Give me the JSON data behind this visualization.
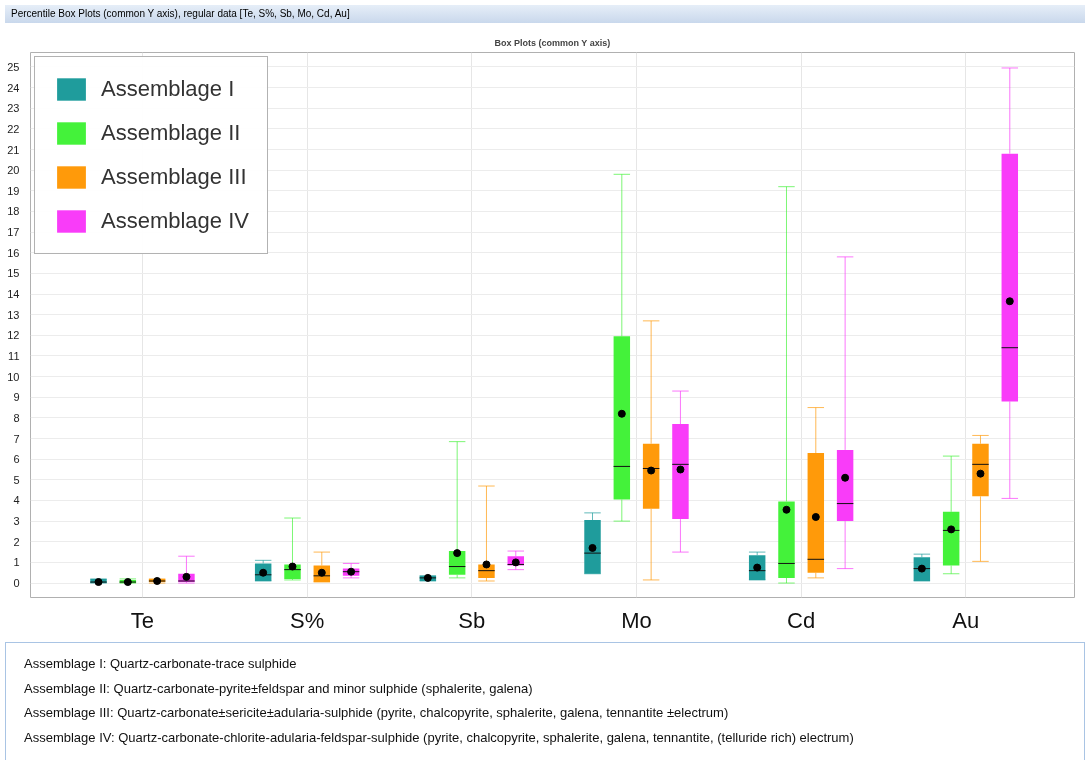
{
  "chart_data": {
    "type": "box",
    "title": "Percentile Box Plots (common Y axis), regular data [Te, S%, Sb, Mo, Cd, Au]",
    "subtitle": "Box Plots (common Y axis)",
    "annotations": [
      "Assemblage I: Quartz-carbonate-trace sulphide",
      "Assemblage II: Quartz-carbonate-pyrite±feldspar and minor sulphide (sphalerite, galena)",
      "Assemblage III: Quartz-carbonate±sericite±adularia-sulphide (pyrite, chalcopyrite, sphalerite, galena, tennantite ±electrum)",
      "Assemblage IV: Quartz-carbonate-chlorite-adularia-feldspar-sulphide (pyrite, chalcopyrite, sphalerite, galena, tennantite, (telluride rich) electrum)"
    ],
    "categories": [
      "Te",
      "S%",
      "Sb",
      "Mo",
      "Cd",
      "Au"
    ],
    "series": [
      {
        "name": "Assemblage I",
        "color": "#1f9c9c",
        "boxes": [
          {
            "low": 0,
            "q1": 0,
            "median": 0.05,
            "q3": 0.2,
            "high": 0.2,
            "mean": 0.05
          },
          {
            "low": 0.1,
            "q1": 0.1,
            "median": 0.4,
            "q3": 0.95,
            "high": 1.1,
            "mean": 0.5
          },
          {
            "low": 0.1,
            "q1": 0.1,
            "median": 0.25,
            "q3": 0.35,
            "high": 0.35,
            "mean": 0.25
          },
          {
            "low": 0.45,
            "q1": 0.45,
            "median": 1.45,
            "q3": 3.05,
            "high": 3.4,
            "mean": 1.7
          },
          {
            "low": 0.15,
            "q1": 0.15,
            "median": 0.6,
            "q3": 1.35,
            "high": 1.5,
            "mean": 0.75
          },
          {
            "low": 0.1,
            "q1": 0.1,
            "median": 0.7,
            "q3": 1.25,
            "high": 1.4,
            "mean": 0.7
          }
        ]
      },
      {
        "name": "Assemblage II",
        "color": "#44f23a",
        "boxes": [
          {
            "low": 0,
            "q1": 0,
            "median": 0.05,
            "q3": 0.15,
            "high": 0.2,
            "mean": 0.05
          },
          {
            "low": 0.15,
            "q1": 0.2,
            "median": 0.65,
            "q3": 0.9,
            "high": 3.15,
            "mean": 0.8
          },
          {
            "low": 0.25,
            "q1": 0.4,
            "median": 0.8,
            "q3": 1.55,
            "high": 6.85,
            "mean": 1.45
          },
          {
            "low": 3.0,
            "q1": 4.05,
            "median": 5.65,
            "q3": 11.95,
            "high": 19.8,
            "mean": 8.2
          },
          {
            "low": 0,
            "q1": 0.25,
            "median": 0.95,
            "q3": 3.95,
            "high": 19.2,
            "mean": 3.55
          },
          {
            "low": 0.45,
            "q1": 0.85,
            "median": 2.55,
            "q3": 3.45,
            "high": 6.15,
            "mean": 2.6
          }
        ]
      },
      {
        "name": "Assemblage III",
        "color": "#ff9a0a",
        "boxes": [
          {
            "low": 0,
            "q1": 0.05,
            "median": 0.1,
            "q3": 0.2,
            "high": 0.2,
            "mean": 0.1
          },
          {
            "low": 0.05,
            "q1": 0.05,
            "median": 0.35,
            "q3": 0.85,
            "high": 1.5,
            "mean": 0.5
          },
          {
            "low": 0.1,
            "q1": 0.25,
            "median": 0.6,
            "q3": 0.9,
            "high": 4.7,
            "mean": 0.9
          },
          {
            "low": 0.15,
            "q1": 3.6,
            "median": 5.55,
            "q3": 6.75,
            "high": 12.7,
            "mean": 5.45
          },
          {
            "low": 0.25,
            "q1": 0.5,
            "median": 1.15,
            "q3": 6.3,
            "high": 8.5,
            "mean": 3.2
          },
          {
            "low": 1.05,
            "q1": 4.2,
            "median": 5.75,
            "q3": 6.75,
            "high": 7.15,
            "mean": 5.3
          }
        ]
      },
      {
        "name": "Assemblage IV",
        "color": "#f93cf9",
        "boxes": [
          {
            "low": 0,
            "q1": 0.05,
            "median": 0.1,
            "q3": 0.45,
            "high": 1.3,
            "mean": 0.3
          },
          {
            "low": 0.25,
            "q1": 0.35,
            "median": 0.55,
            "q3": 0.7,
            "high": 0.95,
            "mean": 0.55
          },
          {
            "low": 0.65,
            "q1": 0.85,
            "median": 0.9,
            "q3": 1.3,
            "high": 1.55,
            "mean": 1.0
          },
          {
            "low": 1.5,
            "q1": 3.1,
            "median": 5.75,
            "q3": 7.7,
            "high": 9.3,
            "mean": 5.5
          },
          {
            "low": 0.7,
            "q1": 3.0,
            "median": 3.85,
            "q3": 6.45,
            "high": 15.8,
            "mean": 5.1
          },
          {
            "low": 4.1,
            "q1": 8.8,
            "median": 11.4,
            "q3": 20.8,
            "high": 24.95,
            "mean": 13.65
          }
        ]
      }
    ],
    "ylim": [
      -0.7,
      25.7
    ],
    "yticks": [
      0,
      1,
      2,
      3,
      4,
      5,
      6,
      7,
      8,
      9,
      10,
      11,
      12,
      13,
      14,
      15,
      16,
      17,
      18,
      19,
      20,
      21,
      22,
      23,
      24,
      25
    ],
    "grid": true,
    "legend": "top left"
  }
}
